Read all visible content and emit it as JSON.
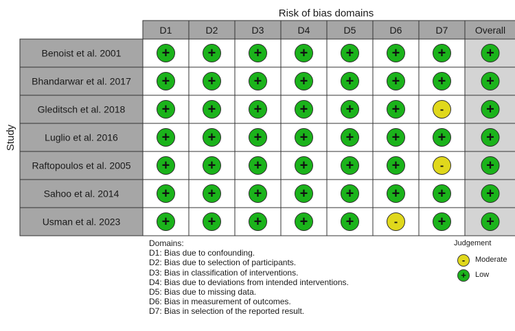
{
  "title": "Risk of bias domains",
  "y_axis_label": "Study",
  "domains": [
    "D1",
    "D2",
    "D3",
    "D4",
    "D5",
    "D6",
    "D7",
    "Overall"
  ],
  "studies": [
    {
      "name": "Benoist et al. 2001",
      "judgements": [
        "low",
        "low",
        "low",
        "low",
        "low",
        "low",
        "low",
        "low"
      ]
    },
    {
      "name": "Bhandarwar et al. 2017",
      "judgements": [
        "low",
        "low",
        "low",
        "low",
        "low",
        "low",
        "low",
        "low"
      ]
    },
    {
      "name": "Gleditsch et al. 2018",
      "judgements": [
        "low",
        "low",
        "low",
        "low",
        "low",
        "low",
        "moderate",
        "low"
      ]
    },
    {
      "name": "Luglio et al. 2016",
      "judgements": [
        "low",
        "low",
        "low",
        "low",
        "low",
        "low",
        "low",
        "low"
      ]
    },
    {
      "name": "Raftopoulos et al. 2005",
      "judgements": [
        "low",
        "low",
        "low",
        "low",
        "low",
        "low",
        "moderate",
        "low"
      ]
    },
    {
      "name": "Sahoo et al. 2014",
      "judgements": [
        "low",
        "low",
        "low",
        "low",
        "low",
        "low",
        "low",
        "low"
      ]
    },
    {
      "name": "Usman et al. 2023",
      "judgements": [
        "low",
        "low",
        "low",
        "low",
        "low",
        "moderate",
        "low",
        "low"
      ]
    }
  ],
  "judgement_symbols": {
    "low": {
      "symbol": "+",
      "color": "#1bb31b"
    },
    "moderate": {
      "symbol": "-",
      "color": "#e0d81c"
    }
  },
  "legend": {
    "domains_title": "Domains:",
    "domains": [
      "D1: Bias due to confounding.",
      "D2: Bias due to selection of participants.",
      "D3: Bias in classification of interventions.",
      "D4: Bias due to deviations from intended interventions.",
      "D5: Bias due to missing data.",
      "D6: Bias in measurement of outcomes.",
      "D7: Bias in selection of the reported result."
    ],
    "judgement_title": "Judgement",
    "judgement_items": [
      {
        "key": "moderate",
        "label": "Moderate"
      },
      {
        "key": "low",
        "label": "Low"
      }
    ]
  },
  "colors": {
    "header_fill": "#a6a6a6",
    "study_fill": "#a6a6a6",
    "overall_fill": "#d4d4d4",
    "border": "#333333"
  }
}
